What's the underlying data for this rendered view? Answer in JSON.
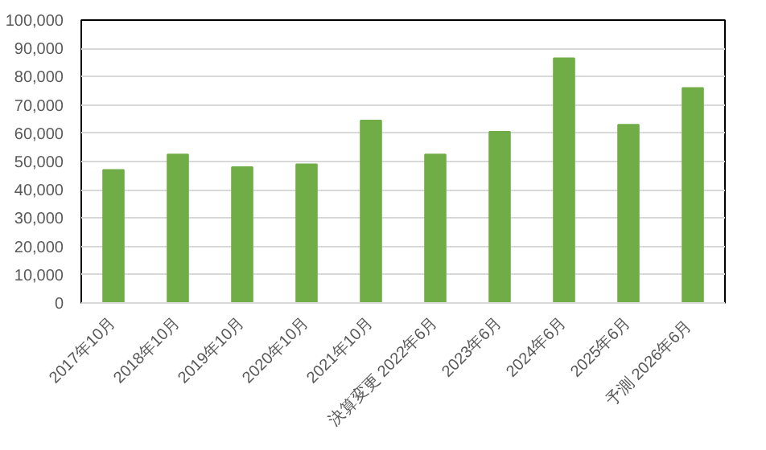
{
  "chart_data": {
    "type": "bar",
    "categories": [
      "2017年10月",
      "2018年10月",
      "2019年10月",
      "2020年10月",
      "2021年10月",
      "決算変更 2022年6月",
      "2023年6月",
      "2024年6月",
      "2025年6月",
      "予測  2026年6月"
    ],
    "values": [
      47000,
      52500,
      48000,
      49000,
      64500,
      52500,
      60500,
      86500,
      63000,
      76000
    ],
    "color": "#70ad47",
    "ylim": [
      0,
      100000
    ],
    "yticks": [
      {
        "value": 0,
        "label": "0"
      },
      {
        "value": 10000,
        "label": "10,000"
      },
      {
        "value": 20000,
        "label": "20,000"
      },
      {
        "value": 30000,
        "label": "30,000"
      },
      {
        "value": 40000,
        "label": "40,000"
      },
      {
        "value": 50000,
        "label": "50,000"
      },
      {
        "value": 60000,
        "label": "60,000"
      },
      {
        "value": 70000,
        "label": "70,000"
      },
      {
        "value": 80000,
        "label": "80,000"
      },
      {
        "value": 90000,
        "label": "90,000"
      },
      {
        "value": 100000,
        "label": "100,000"
      }
    ],
    "grid": "y"
  }
}
